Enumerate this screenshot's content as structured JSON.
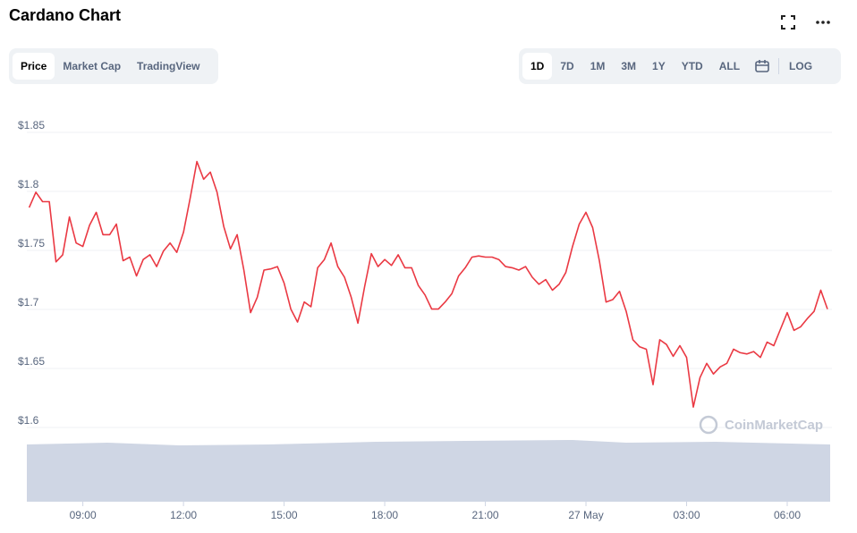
{
  "header": {
    "title": "Cardano Chart"
  },
  "tabs": [
    {
      "label": "Price",
      "active": true
    },
    {
      "label": "Market Cap",
      "active": false
    },
    {
      "label": "TradingView",
      "active": false
    }
  ],
  "ranges": [
    {
      "label": "1D",
      "active": true
    },
    {
      "label": "7D",
      "active": false
    },
    {
      "label": "1M",
      "active": false
    },
    {
      "label": "3M",
      "active": false
    },
    {
      "label": "1Y",
      "active": false
    },
    {
      "label": "YTD",
      "active": false
    },
    {
      "label": "ALL",
      "active": false
    }
  ],
  "log_button": "LOG",
  "chart_data": {
    "type": "line",
    "color": "#ea3943",
    "grid": true,
    "watermark": "CoinMarketCap",
    "xlim": [
      7.33,
      31.28
    ],
    "ylim": [
      1.6,
      1.85
    ],
    "yticks": [
      {
        "value": 1.6,
        "label": "$1.6"
      },
      {
        "value": 1.65,
        "label": "$1.65"
      },
      {
        "value": 1.7,
        "label": "$1.7"
      },
      {
        "value": 1.75,
        "label": "$1.75"
      },
      {
        "value": 1.8,
        "label": "$1.8"
      },
      {
        "value": 1.85,
        "label": "$1.85"
      }
    ],
    "xticks": [
      {
        "value": 9,
        "label": "09:00"
      },
      {
        "value": 12,
        "label": "12:00"
      },
      {
        "value": 15,
        "label": "15:00"
      },
      {
        "value": 18,
        "label": "18:00"
      },
      {
        "value": 21,
        "label": "21:00"
      },
      {
        "value": 24,
        "label": "27 May"
      },
      {
        "value": 27,
        "label": "03:00"
      },
      {
        "value": 30,
        "label": "06:00"
      }
    ],
    "x": [
      7.4,
      7.6,
      7.8,
      8.0,
      8.2,
      8.4,
      8.6,
      8.8,
      9.0,
      9.2,
      9.4,
      9.6,
      9.8,
      10.0,
      10.2,
      10.4,
      10.6,
      10.8,
      11.0,
      11.2,
      11.4,
      11.6,
      11.8,
      12.0,
      12.2,
      12.4,
      12.6,
      12.8,
      13.0,
      13.2,
      13.4,
      13.6,
      13.8,
      14.0,
      14.2,
      14.4,
      14.6,
      14.8,
      15.0,
      15.2,
      15.4,
      15.6,
      15.8,
      16.0,
      16.2,
      16.4,
      16.6,
      16.8,
      17.0,
      17.2,
      17.4,
      17.6,
      17.8,
      18.0,
      18.2,
      18.4,
      18.6,
      18.8,
      19.0,
      19.2,
      19.4,
      19.6,
      19.8,
      20.0,
      20.2,
      20.4,
      20.6,
      20.8,
      21.0,
      21.2,
      21.4,
      21.6,
      21.8,
      22.0,
      22.2,
      22.4,
      22.6,
      22.8,
      23.0,
      23.2,
      23.4,
      23.6,
      23.8,
      24.0,
      24.2,
      24.4,
      24.6,
      24.8,
      25.0,
      25.2,
      25.4,
      25.6,
      25.8,
      26.0,
      26.2,
      26.4,
      26.6,
      26.8,
      27.0,
      27.2,
      27.4,
      27.6,
      27.8,
      28.0,
      28.2,
      28.4,
      28.6,
      28.8,
      29.0,
      29.2,
      29.4,
      29.6,
      29.8,
      30.0,
      30.2,
      30.4,
      30.6,
      30.8,
      31.0,
      31.2
    ],
    "values": [
      1.781,
      1.794,
      1.786,
      1.786,
      1.735,
      1.741,
      1.773,
      1.751,
      1.748,
      1.766,
      1.777,
      1.758,
      1.758,
      1.767,
      1.736,
      1.739,
      1.723,
      1.737,
      1.741,
      1.731,
      1.744,
      1.751,
      1.743,
      1.76,
      1.789,
      1.82,
      1.805,
      1.811,
      1.794,
      1.765,
      1.746,
      1.758,
      1.728,
      1.692,
      1.705,
      1.728,
      1.729,
      1.731,
      1.717,
      1.695,
      1.684,
      1.701,
      1.697,
      1.73,
      1.737,
      1.751,
      1.731,
      1.722,
      1.705,
      1.683,
      1.714,
      1.742,
      1.731,
      1.737,
      1.732,
      1.741,
      1.73,
      1.73,
      1.715,
      1.707,
      1.695,
      1.695,
      1.701,
      1.708,
      1.723,
      1.73,
      1.739,
      1.74,
      1.739,
      1.739,
      1.737,
      1.731,
      1.73,
      1.728,
      1.731,
      1.722,
      1.716,
      1.72,
      1.711,
      1.716,
      1.726,
      1.748,
      1.767,
      1.777,
      1.764,
      1.736,
      1.701,
      1.703,
      1.71,
      1.693,
      1.669,
      1.663,
      1.661,
      1.631,
      1.669,
      1.665,
      1.655,
      1.664,
      1.654,
      1.612,
      1.637,
      1.649,
      1.64,
      1.646,
      1.649,
      1.661,
      1.658,
      1.657,
      1.659,
      1.654,
      1.667,
      1.664,
      1.678,
      1.692,
      1.677,
      1.68,
      1.687,
      1.693,
      1.711,
      1.695
    ]
  }
}
